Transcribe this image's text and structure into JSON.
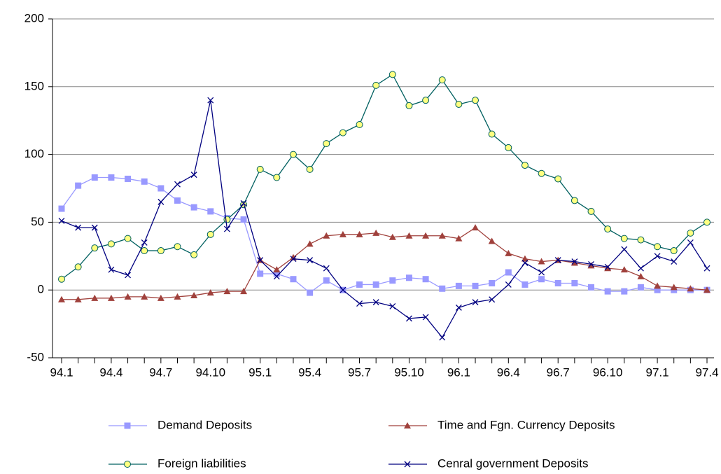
{
  "chart_data": {
    "type": "line",
    "categories": [
      "94.1",
      null,
      null,
      "94.4",
      null,
      null,
      "94.7",
      null,
      null,
      "94.10",
      null,
      null,
      "95.1",
      null,
      null,
      "95.4",
      null,
      null,
      "95.7",
      null,
      null,
      "95.10",
      null,
      null,
      "96.1",
      null,
      null,
      "96.4",
      null,
      null,
      "96.7",
      null,
      null,
      "96.10",
      null,
      null,
      "97.1",
      null,
      null,
      "97.4"
    ],
    "series": [
      {
        "name": "Demand Deposits",
        "color": "#9999ff",
        "marker": "square",
        "values": [
          60,
          77,
          83,
          83,
          82,
          80,
          75,
          66,
          61,
          58,
          53,
          52,
          12,
          12,
          8,
          -2,
          7,
          0,
          4,
          4,
          7,
          9,
          8,
          1,
          3,
          3,
          5,
          13,
          4,
          8,
          5,
          5,
          2,
          -1,
          -1,
          2,
          0,
          0,
          0,
          0
        ]
      },
      {
        "name": "Time and Fgn. Currency Deposits",
        "color": "#a0413c",
        "marker": "triangle",
        "values": [
          -7,
          -7,
          -6,
          -6,
          -5,
          -5,
          -6,
          -5,
          -4,
          -2,
          -1,
          -1,
          22,
          15,
          24,
          34,
          40,
          41,
          41,
          42,
          39,
          40,
          40,
          40,
          38,
          46,
          36,
          27,
          23,
          21,
          22,
          20,
          18,
          16,
          15,
          10,
          3,
          2,
          1,
          0
        ]
      },
      {
        "name": "Foreign liabilities",
        "color": "#006060",
        "marker": "circle",
        "values": [
          8,
          17,
          31,
          34,
          38,
          29,
          29,
          32,
          26,
          41,
          52,
          63,
          89,
          83,
          100,
          89,
          108,
          116,
          122,
          151,
          159,
          136,
          140,
          155,
          137,
          140,
          115,
          105,
          92,
          86,
          82,
          66,
          58,
          45,
          38,
          37,
          32,
          29,
          42,
          50
        ]
      },
      {
        "name": "Cenral government Deposits",
        "color": "#000080",
        "marker": "cross",
        "values": [
          51,
          46,
          46,
          15,
          11,
          35,
          65,
          78,
          85,
          140,
          45,
          64,
          22,
          10,
          23,
          22,
          16,
          0,
          -10,
          -9,
          -12,
          -21,
          -20,
          -35,
          -13,
          -9,
          -7,
          4,
          20,
          13,
          22,
          21,
          19,
          17,
          30,
          16,
          25,
          21,
          35,
          16
        ]
      }
    ],
    "ylim": [
      -50,
      200
    ],
    "yticks": [
      -50,
      0,
      50,
      100,
      150,
      200
    ],
    "grid": true,
    "legend": "bottom"
  }
}
